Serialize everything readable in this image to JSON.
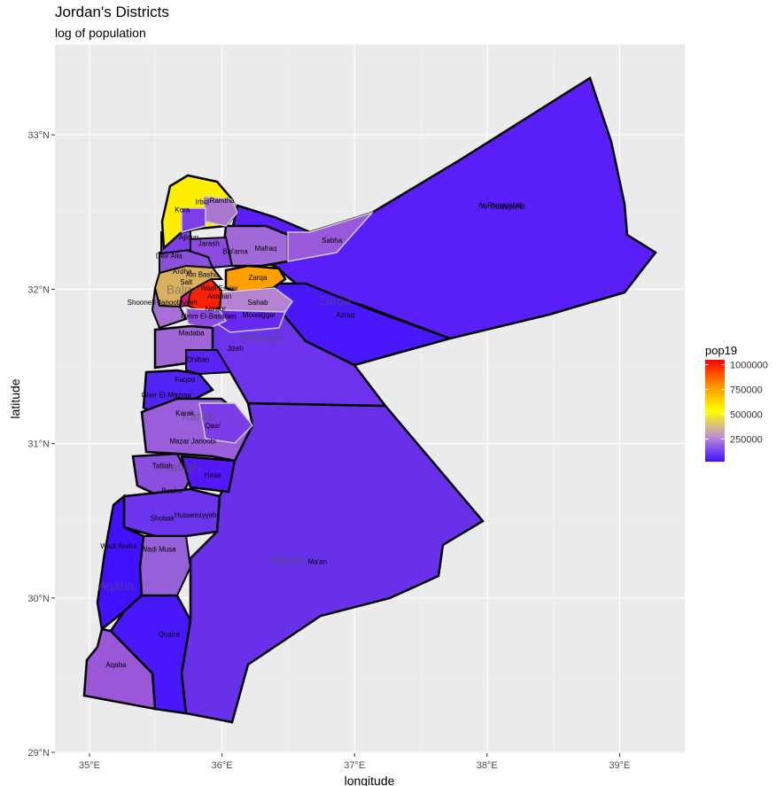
{
  "title": "Jordan's Districts",
  "subtitle": "log of population",
  "chart_data": {
    "type": "choropleth-map",
    "xlabel": "longitude",
    "ylabel": "latitude",
    "xlim": [
      34.75,
      39.5
    ],
    "ylim": [
      29.0,
      33.6
    ],
    "x_ticks": [
      {
        "value": 35,
        "label": "35°E"
      },
      {
        "value": 36,
        "label": "36°E"
      },
      {
        "value": 37,
        "label": "37°E"
      },
      {
        "value": 38,
        "label": "38°E"
      },
      {
        "value": 39,
        "label": "39°E"
      }
    ],
    "y_ticks": [
      {
        "value": 29,
        "label": "29°N"
      },
      {
        "value": 30,
        "label": "30°N"
      },
      {
        "value": 31,
        "label": "31°N"
      },
      {
        "value": 32,
        "label": "32°N"
      },
      {
        "value": 33,
        "label": "33°N"
      }
    ],
    "grid": true,
    "legend": {
      "title": "pop19",
      "placement": "right",
      "colors": [
        "#4010ff",
        "#c090d0",
        "#ffff00",
        "#ff9000",
        "#ff0000"
      ],
      "ticks": [
        {
          "value": 250000,
          "label": "250000"
        },
        {
          "value": 500000,
          "label": "500000"
        },
        {
          "value": 750000,
          "label": "750000"
        },
        {
          "value": 1000000,
          "label": "1000000"
        }
      ],
      "min": 20000,
      "max": 1050000
    },
    "governorate_labels": [
      {
        "name": "Zarqa",
        "lon": 36.85,
        "lat": 31.9
      },
      {
        "name": "Amman",
        "lon": 36.3,
        "lat": 31.66
      },
      {
        "name": "Karak",
        "lon": 35.82,
        "lat": 31.15
      },
      {
        "name": "Tafilah",
        "lon": 35.7,
        "lat": 30.82
      },
      {
        "name": "Ma'an",
        "lon": 36.5,
        "lat": 30.22
      },
      {
        "name": "Aqaba",
        "lon": 35.2,
        "lat": 30.05
      },
      {
        "name": "Balqa",
        "lon": 35.7,
        "lat": 31.97
      }
    ],
    "districts": [
      {
        "name": "Ar-Ruwayshid",
        "lon": 38.1,
        "lat": 32.53,
        "color": "#5a1ef8"
      },
      {
        "name": "Ar-Ruwayshid",
        "lon": 38.12,
        "lat": 32.52,
        "color": "#5a1ef8"
      },
      {
        "name": "Sabha",
        "lon": 36.83,
        "lat": 32.3,
        "color": "#9a58dc"
      },
      {
        "name": "Mafraq",
        "lon": 36.33,
        "lat": 32.25,
        "color": "#a26ad8"
      },
      {
        "name": "Bal'ama",
        "lon": 36.1,
        "lat": 32.23,
        "color": "#7c3ae8"
      },
      {
        "name": "Zarqa",
        "lon": 36.27,
        "lat": 32.06,
        "color": "#ffa000"
      },
      {
        "name": "Sahab",
        "lon": 36.27,
        "lat": 31.9,
        "color": "#b682d2"
      },
      {
        "name": "Azraq",
        "lon": 36.93,
        "lat": 31.82,
        "color": "#4818fb"
      },
      {
        "name": "Mowaggar",
        "lon": 36.28,
        "lat": 31.82,
        "color": "#6828f0"
      },
      {
        "name": "Jizeh",
        "lon": 36.1,
        "lat": 31.6,
        "color": "#6d32ec"
      },
      {
        "name": "Wadi Essier",
        "lon": 35.98,
        "lat": 31.99,
        "color": "#ff1a00"
      },
      {
        "name": "Na'oor",
        "lon": 35.95,
        "lat": 31.86,
        "color": "#8d4ae0"
      },
      {
        "name": "Amman",
        "lon": 35.98,
        "lat": 31.94,
        "color": "#ff2000"
      },
      {
        "name": "Umm El-Basatien",
        "lon": 35.9,
        "lat": 31.81,
        "color": "#7a38e6"
      },
      {
        "name": "Madaba",
        "lon": 35.77,
        "lat": 31.7,
        "color": "#a066d6"
      },
      {
        "name": "Dhiban",
        "lon": 35.82,
        "lat": 31.53,
        "color": "#5a22f4"
      },
      {
        "name": "Shooneh Janoobiyyeh",
        "lon": 35.55,
        "lat": 31.9,
        "color": "#a870d4"
      },
      {
        "name": "Salt",
        "lon": 35.73,
        "lat": 32.03,
        "color": "#d8b060"
      },
      {
        "name": "Ain Basha",
        "lon": 35.85,
        "lat": 32.08,
        "color": "#e0b8a0"
      },
      {
        "name": "Ardha",
        "lon": 35.7,
        "lat": 32.1,
        "color": "#a06ed0"
      },
      {
        "name": "Deir Alla",
        "lon": 35.6,
        "lat": 32.2,
        "color": "#8c50dc"
      },
      {
        "name": "Jarash",
        "lon": 35.9,
        "lat": 32.28,
        "color": "#8c4ae0"
      },
      {
        "name": "Ajloun",
        "lon": 35.75,
        "lat": 32.32,
        "color": "#7e40e6"
      },
      {
        "name": "Kora",
        "lon": 35.7,
        "lat": 32.5,
        "color": "#7c3ee8"
      },
      {
        "name": "Irbid",
        "lon": 35.85,
        "lat": 32.55,
        "color": "#ffee00"
      },
      {
        "name": "Ramtha",
        "lon": 36.0,
        "lat": 32.56,
        "color": "#a878d0"
      },
      {
        "name": "Ghor El-Mazraa",
        "lon": 35.58,
        "lat": 31.3,
        "color": "#5024f4"
      },
      {
        "name": "Faqoo",
        "lon": 35.72,
        "lat": 31.4,
        "color": "#6630ee"
      },
      {
        "name": "Karak",
        "lon": 35.72,
        "lat": 31.18,
        "color": "#9a5edc"
      },
      {
        "name": "Qasr",
        "lon": 35.93,
        "lat": 31.1,
        "color": "#7c3ce8"
      },
      {
        "name": "Mazar Janoobi",
        "lon": 35.78,
        "lat": 31.0,
        "color": "#9a5edc"
      },
      {
        "name": "Tafilah",
        "lon": 35.55,
        "lat": 30.84,
        "color": "#8a4ee0"
      },
      {
        "name": "Hesa",
        "lon": 35.93,
        "lat": 30.78,
        "color": "#5418f8"
      },
      {
        "name": "Bsaira",
        "lon": 35.62,
        "lat": 30.68,
        "color": "#8a4ee0"
      },
      {
        "name": "Shobak",
        "lon": 35.55,
        "lat": 30.5,
        "color": "#6c34ec"
      },
      {
        "name": "Husseiniyyeh",
        "lon": 35.8,
        "lat": 30.52,
        "color": "#6c34ec"
      },
      {
        "name": "Wadi Araba",
        "lon": 35.22,
        "lat": 30.32,
        "color": "#4010ff"
      },
      {
        "name": "Wadi Musa",
        "lon": 35.52,
        "lat": 30.3,
        "color": "#9660d8"
      },
      {
        "name": "Ma'an",
        "lon": 36.72,
        "lat": 30.22,
        "color": "#6930ea"
      },
      {
        "name": "Quaira",
        "lon": 35.6,
        "lat": 29.75,
        "color": "#4818fb"
      },
      {
        "name": "Aqaba",
        "lon": 35.2,
        "lat": 29.55,
        "color": "#9a58d8"
      }
    ]
  }
}
